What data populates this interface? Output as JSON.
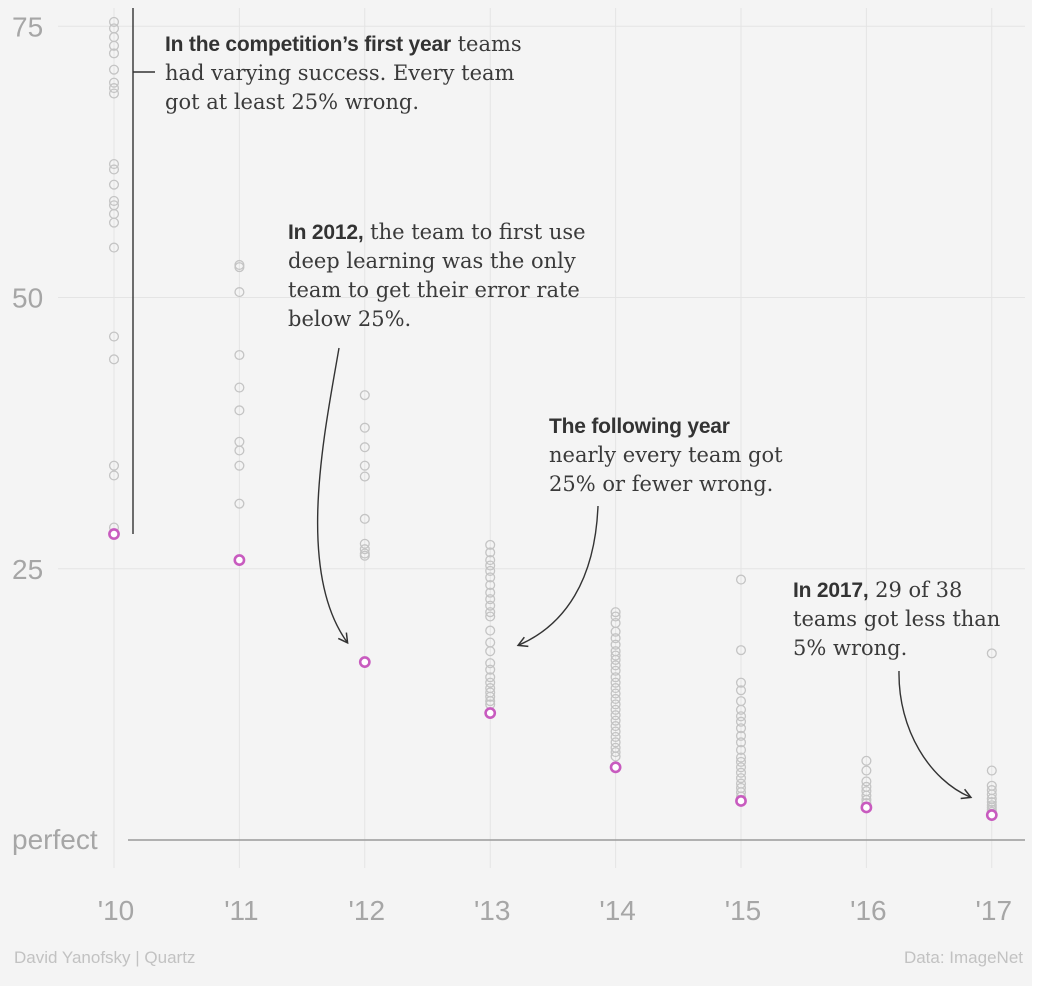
{
  "chart_data": {
    "type": "scatter",
    "ylim": [
      -3,
      76
    ],
    "yticks": [
      {
        "value": 75,
        "label": "75"
      },
      {
        "value": 50,
        "label": "50"
      },
      {
        "value": 25,
        "label": "25"
      },
      {
        "value": 0,
        "label": "perfect"
      }
    ],
    "categories": [
      "'10",
      "'11",
      "'12",
      "'13",
      "'14",
      "'15",
      "'16",
      "'17"
    ],
    "colors": {
      "other": "#c4c4c4",
      "winner": "#c85bbf",
      "grid": "#e4e4e4",
      "baseline": "#9a9a9a",
      "annotation_line": "#333333"
    },
    "years": [
      {
        "x": "'10",
        "best": 28.2,
        "others": [
          75.4,
          74.8,
          74.0,
          73.2,
          72.5,
          71.0,
          69.8,
          69.3,
          68.8,
          62.3,
          61.8,
          60.4,
          58.9,
          58.5,
          57.7,
          56.9,
          54.6,
          46.4,
          44.3,
          34.5,
          33.6,
          28.8
        ]
      },
      {
        "x": "'11",
        "best": 25.8,
        "others": [
          53.0,
          52.8,
          50.5,
          44.7,
          41.7,
          39.6,
          36.7,
          35.9,
          34.5,
          31.0
        ]
      },
      {
        "x": "'12",
        "best": 16.4,
        "others": [
          41.0,
          38.0,
          36.2,
          34.5,
          33.5,
          29.6,
          27.3,
          26.8,
          26.4,
          26.2
        ]
      },
      {
        "x": "'13",
        "best": 11.7,
        "others": [
          27.2,
          26.5,
          25.8,
          25.3,
          24.8,
          24.2,
          23.5,
          22.8,
          22.2,
          21.6,
          21.0,
          20.6,
          19.3,
          18.2,
          17.4,
          16.3,
          15.7,
          15.0,
          14.5,
          14.0,
          13.6,
          13.2,
          12.8,
          12.5
        ]
      },
      {
        "x": "'14",
        "best": 6.7,
        "others": [
          21.0,
          20.6,
          20.0,
          19.2,
          18.6,
          18.0,
          17.4,
          17.0,
          16.6,
          16.1,
          15.6,
          15.0,
          14.5,
          14.0,
          13.5,
          13.0,
          12.5,
          12.0,
          11.5,
          11.0,
          10.5,
          10.0,
          9.5,
          9.0,
          8.5,
          8.1,
          7.7
        ]
      },
      {
        "x": "'15",
        "best": 3.6,
        "others": [
          24.0,
          17.5,
          14.5,
          13.8,
          12.8,
          12.0,
          11.4,
          10.9,
          10.3,
          9.6,
          9.0,
          8.3,
          7.6,
          7.2,
          6.7,
          6.2,
          5.7,
          5.2,
          4.8,
          4.4,
          4.0
        ]
      },
      {
        "x": "'16",
        "best": 3.0,
        "others": [
          7.3,
          6.4,
          5.4,
          4.9,
          4.5,
          4.1,
          3.7,
          3.4
        ]
      },
      {
        "x": "'17",
        "best": 2.3,
        "others": [
          17.2,
          6.4,
          5.0,
          4.6,
          4.2,
          3.8,
          3.5,
          3.2,
          3.0,
          2.8,
          2.6
        ]
      }
    ]
  },
  "annotations": {
    "first_year": {
      "bold": "In the competition’s first year",
      "text": " teams had varying success. Every team got at least 25% wrong."
    },
    "y2012": {
      "bold": "In 2012,",
      "text": " the team to first use deep learning was the only team to get their error rate below 25%."
    },
    "following": {
      "bold": "The following year",
      "text": " nearly every team got 25% or fewer wrong."
    },
    "y2017": {
      "bold": "In 2017,",
      "text": " 29 of 38 teams got less than 5% wrong."
    }
  },
  "footer": {
    "credit": "David Yanofsky | Quartz",
    "source": "Data: ImageNet"
  }
}
